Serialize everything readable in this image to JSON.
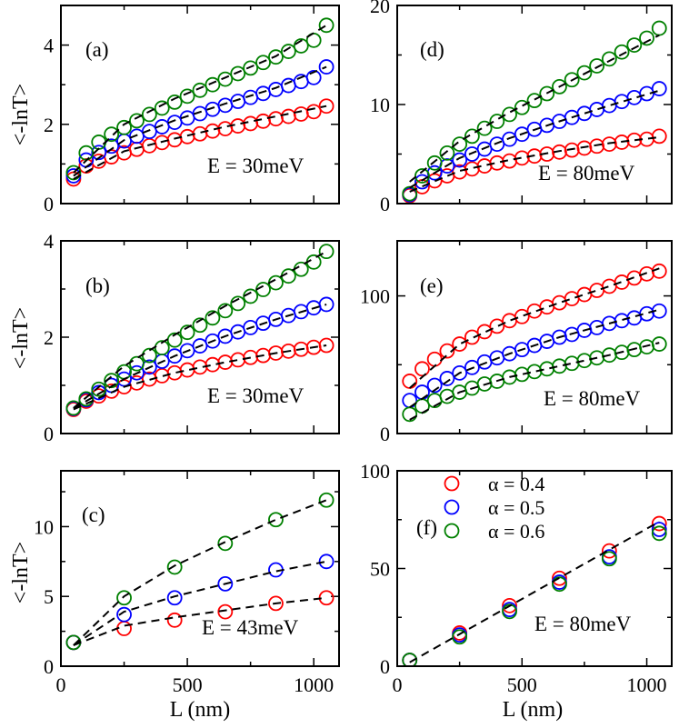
{
  "figure": {
    "ylabel": "<-lnT>",
    "xlabel": "L (nm)"
  },
  "colors": {
    "red": "#ff0000",
    "blue": "#0000ff",
    "green": "#008000",
    "fit": "#000000"
  },
  "chart_data": [
    {
      "id": "a",
      "type": "scatter",
      "panel_label": "(a)",
      "annotation": "E = 30meV",
      "xlim": [
        0,
        1100
      ],
      "ylim": [
        0,
        5
      ],
      "yticks": [
        0,
        2,
        4
      ],
      "xticks": [
        0,
        500,
        1000
      ],
      "x": [
        50,
        100,
        150,
        200,
        250,
        300,
        350,
        400,
        450,
        500,
        550,
        600,
        650,
        700,
        750,
        800,
        850,
        900,
        950,
        1000,
        1050
      ],
      "series": [
        {
          "name": "α = 0.4",
          "color": "red",
          "values": [
            0.62,
            0.95,
            1.07,
            1.18,
            1.28,
            1.37,
            1.46,
            1.54,
            1.61,
            1.69,
            1.76,
            1.83,
            1.89,
            1.96,
            2.02,
            2.08,
            2.14,
            2.2,
            2.26,
            2.32,
            2.46
          ]
        },
        {
          "name": "α = 0.5",
          "color": "blue",
          "values": [
            0.7,
            1.1,
            1.29,
            1.45,
            1.58,
            1.7,
            1.82,
            1.94,
            2.05,
            2.16,
            2.27,
            2.38,
            2.48,
            2.58,
            2.68,
            2.78,
            2.88,
            2.98,
            3.08,
            3.18,
            3.45
          ]
        },
        {
          "name": "α = 0.6",
          "color": "green",
          "values": [
            0.78,
            1.28,
            1.55,
            1.75,
            1.92,
            2.09,
            2.25,
            2.41,
            2.56,
            2.71,
            2.86,
            3.0,
            3.14,
            3.28,
            3.42,
            3.56,
            3.7,
            3.84,
            3.98,
            4.12,
            4.5
          ]
        }
      ],
      "fits": [
        {
          "x": [
            50,
            250,
            450,
            650,
            850,
            1050
          ],
          "y": [
            0.62,
            1.32,
            1.64,
            1.94,
            2.2,
            2.46
          ]
        },
        {
          "x": [
            50,
            250,
            450,
            650,
            850,
            1050
          ],
          "y": [
            0.7,
            1.6,
            2.1,
            2.52,
            2.92,
            3.45
          ]
        },
        {
          "x": [
            50,
            250,
            450,
            650,
            850,
            1050
          ],
          "y": [
            0.78,
            2.0,
            2.65,
            3.18,
            3.72,
            4.5
          ]
        }
      ]
    },
    {
      "id": "b",
      "type": "scatter",
      "panel_label": "(b)",
      "annotation": "E = 30meV",
      "xlim": [
        0,
        1100
      ],
      "ylim": [
        0,
        4
      ],
      "yticks": [
        0,
        2,
        4
      ],
      "xticks": [
        0,
        500,
        1000
      ],
      "x": [
        50,
        100,
        150,
        200,
        250,
        300,
        350,
        400,
        450,
        500,
        550,
        600,
        650,
        700,
        750,
        800,
        850,
        900,
        950,
        1000,
        1050
      ],
      "series": [
        {
          "name": "α = 0.4",
          "color": "red",
          "values": [
            0.5,
            0.67,
            0.78,
            0.88,
            0.97,
            1.05,
            1.13,
            1.2,
            1.26,
            1.32,
            1.38,
            1.43,
            1.48,
            1.53,
            1.58,
            1.62,
            1.67,
            1.71,
            1.75,
            1.79,
            1.83
          ]
        },
        {
          "name": "α = 0.5",
          "color": "blue",
          "values": [
            0.52,
            0.7,
            0.85,
            1.0,
            1.13,
            1.26,
            1.38,
            1.5,
            1.61,
            1.72,
            1.82,
            1.92,
            2.02,
            2.11,
            2.2,
            2.29,
            2.37,
            2.45,
            2.53,
            2.61,
            2.68
          ]
        },
        {
          "name": "α = 0.6",
          "color": "green",
          "values": [
            0.53,
            0.72,
            0.92,
            1.1,
            1.28,
            1.45,
            1.62,
            1.78,
            1.94,
            2.1,
            2.25,
            2.4,
            2.55,
            2.7,
            2.85,
            2.99,
            3.13,
            3.27,
            3.41,
            3.56,
            3.78
          ]
        }
      ],
      "fits": [
        {
          "x": [
            50,
            250,
            450,
            650,
            850,
            1050
          ],
          "y": [
            0.5,
            0.97,
            1.26,
            1.48,
            1.67,
            1.83
          ]
        },
        {
          "x": [
            50,
            250,
            450,
            650,
            850,
            1050
          ],
          "y": [
            0.52,
            1.13,
            1.61,
            2.02,
            2.37,
            2.68
          ]
        },
        {
          "x": [
            50,
            250,
            450,
            650,
            850,
            1050
          ],
          "y": [
            0.53,
            1.4,
            2.05,
            2.65,
            3.2,
            3.78
          ]
        }
      ]
    },
    {
      "id": "c",
      "type": "scatter",
      "panel_label": "(c)",
      "annotation": "E = 43meV",
      "xlim": [
        0,
        1100
      ],
      "ylim": [
        0,
        14
      ],
      "yticks": [
        0,
        5,
        10
      ],
      "xticks": [
        0,
        500,
        1000
      ],
      "x": [
        50,
        250,
        450,
        650,
        850,
        1050
      ],
      "series": [
        {
          "name": "α = 0.4",
          "color": "red",
          "values": [
            1.7,
            2.7,
            3.3,
            3.9,
            4.5,
            4.9
          ]
        },
        {
          "name": "α = 0.5",
          "color": "blue",
          "values": [
            1.7,
            3.7,
            4.9,
            5.9,
            6.9,
            7.5
          ]
        },
        {
          "name": "α = 0.6",
          "color": "green",
          "values": [
            1.7,
            4.9,
            7.1,
            8.8,
            10.5,
            11.9
          ]
        }
      ],
      "fits": [
        {
          "x": [
            50,
            250,
            450,
            650,
            850,
            1050
          ],
          "y": [
            1.5,
            2.9,
            3.5,
            4.0,
            4.5,
            4.9
          ]
        },
        {
          "x": [
            50,
            250,
            450,
            650,
            850,
            1050
          ],
          "y": [
            1.5,
            3.9,
            5.0,
            5.9,
            6.8,
            7.5
          ]
        },
        {
          "x": [
            50,
            250,
            450,
            650,
            850,
            1050
          ],
          "y": [
            1.5,
            5.0,
            7.2,
            8.9,
            10.5,
            11.9
          ]
        }
      ]
    },
    {
      "id": "d",
      "type": "scatter",
      "panel_label": "(d)",
      "annotation": "E = 80meV",
      "xlim": [
        0,
        1100
      ],
      "ylim": [
        0,
        20
      ],
      "yticks": [
        0,
        10,
        20
      ],
      "xticks": [
        0,
        500,
        1000
      ],
      "x": [
        50,
        100,
        150,
        200,
        250,
        300,
        350,
        400,
        450,
        500,
        550,
        600,
        650,
        700,
        750,
        800,
        850,
        900,
        950,
        1000,
        1050
      ],
      "series": [
        {
          "name": "α = 0.4",
          "color": "red",
          "values": [
            0.8,
            1.7,
            2.3,
            2.8,
            3.2,
            3.5,
            3.8,
            4.1,
            4.3,
            4.6,
            4.8,
            5.0,
            5.2,
            5.4,
            5.6,
            5.8,
            6.0,
            6.2,
            6.4,
            6.5,
            6.8
          ]
        },
        {
          "name": "α = 0.5",
          "color": "blue",
          "values": [
            0.9,
            2.2,
            3.1,
            3.8,
            4.4,
            5.0,
            5.5,
            6.0,
            6.5,
            7.0,
            7.5,
            7.9,
            8.3,
            8.7,
            9.1,
            9.5,
            9.9,
            10.3,
            10.7,
            11.1,
            11.6
          ]
        },
        {
          "name": "α = 0.6",
          "color": "green",
          "values": [
            1.0,
            2.8,
            4.1,
            5.1,
            6.0,
            6.8,
            7.6,
            8.3,
            9.0,
            9.7,
            10.4,
            11.1,
            11.8,
            12.5,
            13.2,
            13.9,
            14.6,
            15.3,
            16.0,
            16.7,
            17.7
          ]
        }
      ],
      "fits": [
        {
          "x": [
            50,
            250,
            450,
            650,
            850,
            1050
          ],
          "y": [
            1.2,
            3.3,
            4.4,
            5.3,
            6.1,
            6.7
          ]
        },
        {
          "x": [
            50,
            250,
            450,
            650,
            850,
            1050
          ],
          "y": [
            1.6,
            4.6,
            6.6,
            8.3,
            9.9,
            11.4
          ]
        },
        {
          "x": [
            50,
            250,
            450,
            650,
            850,
            1050
          ],
          "y": [
            2.2,
            6.3,
            9.2,
            11.8,
            14.4,
            17.0
          ]
        }
      ]
    },
    {
      "id": "e",
      "type": "scatter",
      "panel_label": "(e)",
      "annotation": "E = 80meV",
      "xlim": [
        0,
        1100
      ],
      "ylim": [
        0,
        140
      ],
      "yticks": [
        0,
        100
      ],
      "xticks": [
        0,
        500,
        1000
      ],
      "x": [
        50,
        100,
        150,
        200,
        250,
        300,
        350,
        400,
        450,
        500,
        550,
        600,
        650,
        700,
        750,
        800,
        850,
        900,
        950,
        1000,
        1050
      ],
      "series": [
        {
          "name": "α = 0.4",
          "color": "red",
          "values": [
            38,
            47,
            54,
            60,
            65,
            70,
            74,
            78,
            82,
            85,
            89,
            92,
            95,
            98,
            101,
            104,
            107,
            110,
            113,
            116,
            118
          ]
        },
        {
          "name": "α = 0.5",
          "color": "blue",
          "values": [
            24,
            30,
            35,
            40,
            44,
            48,
            52,
            55,
            58,
            61,
            64,
            67,
            70,
            72,
            75,
            77,
            80,
            82,
            84,
            87,
            89
          ]
        },
        {
          "name": "α = 0.6",
          "color": "green",
          "values": [
            14,
            20,
            24,
            27,
            30,
            33,
            36,
            38,
            41,
            43,
            45,
            47,
            49,
            51,
            53,
            55,
            57,
            59,
            61,
            63,
            65
          ]
        }
      ],
      "fits": [
        {
          "x": [
            50,
            250,
            450,
            650,
            850,
            1050
          ],
          "y": [
            33,
            65,
            82,
            95,
            107,
            120
          ]
        },
        {
          "x": [
            50,
            250,
            450,
            650,
            850,
            1050
          ],
          "y": [
            19,
            44,
            58,
            70,
            80,
            90
          ]
        },
        {
          "x": [
            50,
            250,
            450,
            650,
            850,
            1050
          ],
          "y": [
            10,
            30,
            41,
            49,
            57,
            66
          ]
        }
      ]
    },
    {
      "id": "f",
      "type": "scatter",
      "panel_label": "(f)",
      "annotation": "E = 80meV",
      "xlim": [
        0,
        1100
      ],
      "ylim": [
        0,
        100
      ],
      "yticks": [
        0,
        50,
        100
      ],
      "xticks": [
        0,
        500,
        1000
      ],
      "x": [
        50,
        250,
        450,
        650,
        850,
        1050
      ],
      "legend": [
        "α = 0.4",
        "α = 0.5",
        "α = 0.6"
      ],
      "series": [
        {
          "name": "α = 0.4",
          "color": "red",
          "values": [
            3,
            17,
            31,
            45,
            59,
            73
          ]
        },
        {
          "name": "α = 0.5",
          "color": "blue",
          "values": [
            3,
            16,
            29,
            43,
            56,
            70
          ]
        },
        {
          "name": "α = 0.6",
          "color": "green",
          "values": [
            3,
            15,
            28,
            42,
            55,
            68
          ]
        }
      ],
      "fits": [
        {
          "x": [
            50,
            1050
          ],
          "y": [
            2,
            74
          ]
        }
      ]
    }
  ]
}
